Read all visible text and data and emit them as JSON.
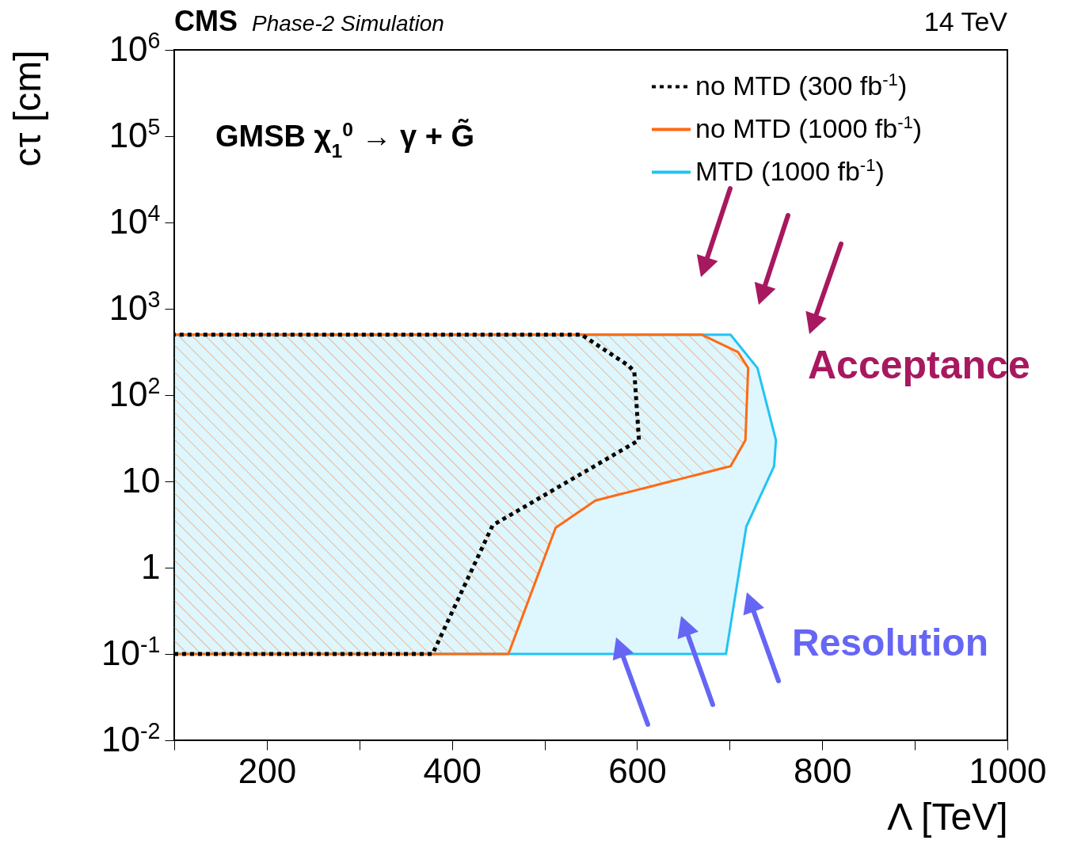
{
  "chart_data": {
    "type": "area",
    "title": "CMS",
    "subtitle": "Phase-2 Simulation",
    "xlabel": "Λ [TeV]",
    "ylabel": "cτ [cm]",
    "xlim": [
      100,
      1000
    ],
    "xticks": [
      {
        "value": 100,
        "label": null
      },
      200,
      {
        "value": 300,
        "label": null
      },
      400,
      {
        "value": 500,
        "label": null
      },
      600,
      {
        "value": 700,
        "label": null
      },
      800,
      {
        "value": 900,
        "label": null
      },
      1000
    ],
    "ylim": [
      0.01,
      1000000
    ],
    "log": true,
    "yticks": [
      {
        "value": 0.01,
        "label": "10$^{-2}$"
      },
      {
        "value": 0.1,
        "label": "10$^{-1}$"
      },
      1,
      10,
      {
        "value": 100,
        "label": "10$^{2}$"
      },
      {
        "value": 1000,
        "label": "10$^{3}$"
      },
      {
        "value": 10000,
        "label": "10$^{4}$"
      },
      {
        "value": 100000,
        "label": "10$^{5}$"
      },
      {
        "value": 1000000,
        "label": "10$^{6}$"
      }
    ],
    "grid": false,
    "legend": "top right",
    "marker": "none",
    "series": [
      {
        "name": "no MTD (300 fb$^{-1}$)",
        "type": "line",
        "line_style": "dotted",
        "color": "#000000",
        "x": [
          100,
          379,
          444,
          602,
          597,
          591,
          540,
          100
        ],
        "values": [
          0.1,
          0.1,
          3.1,
          30,
          186,
          219,
          500,
          500
        ]
      },
      {
        "name": "no MTD (1000 fb$^{-1}$)",
        "line_style": "solid",
        "color": "#ff6a13",
        "x": [
          100,
          461,
          512,
          555,
          701,
          717,
          720,
          709,
          670,
          100
        ],
        "values": [
          0.1,
          0.1,
          2.9,
          6,
          15,
          30,
          206,
          315,
          500,
          500
        ]
      },
      {
        "name": " MTD (1000 fb$^{-1}$)",
        "line_style": "solid",
        "color": "#22c4f2",
        "x": [
          100,
          696,
          718,
          748,
          750,
          730,
          701,
          100
        ],
        "values": [
          0.1,
          0.1,
          3,
          15,
          30,
          206,
          500,
          500
        ]
      }
    ],
    "annotations": [
      "14 TeV",
      "GMSB χ$_{1}$$^{0}$ → γ + G̃",
      "Acceptance",
      "Resolution"
    ]
  }
}
